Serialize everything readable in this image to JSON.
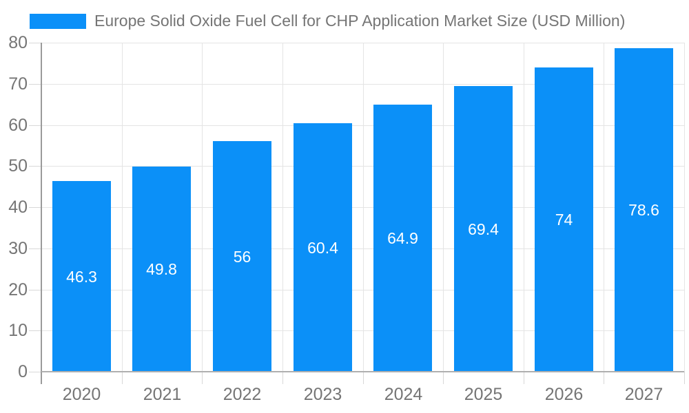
{
  "chart_data": {
    "type": "bar",
    "title": "Europe Solid Oxide Fuel Cell for CHP Application Market Size (USD Million)",
    "categories": [
      "2020",
      "2021",
      "2022",
      "2023",
      "2024",
      "2025",
      "2026",
      "2027"
    ],
    "values": [
      46.3,
      49.8,
      56,
      60.4,
      64.9,
      69.4,
      74,
      78.6
    ],
    "value_labels": [
      "46.3",
      "49.8",
      "56",
      "60.4",
      "64.9",
      "69.4",
      "74",
      "78.6"
    ],
    "xlabel": "",
    "ylabel": "",
    "ylim": [
      0,
      80
    ],
    "yticks": [
      "0",
      "10",
      "20",
      "30",
      "40",
      "50",
      "60",
      "70",
      "80"
    ],
    "grid": "on",
    "legend_position": "top-left",
    "colors": {
      "bar": "#0B90F8",
      "text": "#757575",
      "value_label_text": "#FFFFFF",
      "gridline": "#E4E4E4",
      "tick": "#D8D8D8",
      "axis": "#9A9A9A",
      "baseline": "#AFAFAF",
      "background": "#FFFFFF"
    }
  }
}
